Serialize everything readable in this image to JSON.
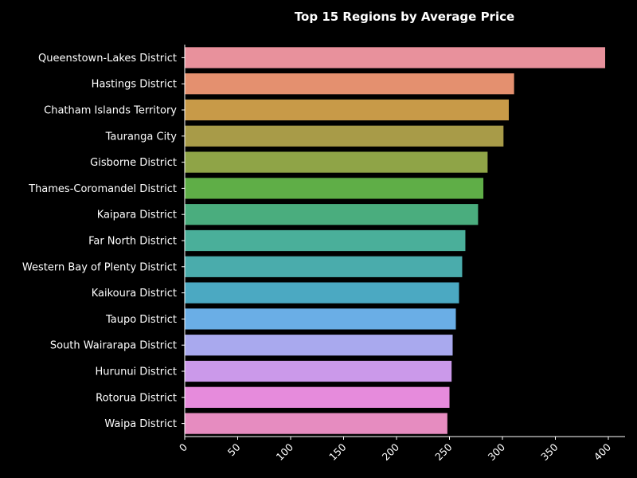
{
  "chart_data": {
    "type": "bar",
    "orientation": "horizontal",
    "title": "Top 15 Regions by Average Price",
    "xlabel": "",
    "ylabel": "",
    "xlim": [
      0,
      415
    ],
    "xticks": [
      "0",
      "50",
      "100",
      "150",
      "200",
      "250",
      "300",
      "350",
      "400"
    ],
    "xtick_values": [
      0,
      50,
      100,
      150,
      200,
      250,
      300,
      350,
      400
    ],
    "grid": false,
    "categories": [
      "Queenstown-Lakes District",
      "Hastings District",
      "Chatham Islands Territory",
      "Tauranga City",
      "Gisborne District",
      "Thames-Coromandel District",
      "Kaipara District",
      "Far North District",
      "Western Bay of Plenty District",
      "Kaikoura District",
      "Taupo District",
      "South Wairarapa District",
      "Hurunui District",
      "Rotorua District",
      "Waipa District"
    ],
    "values": [
      397,
      311,
      306,
      301,
      286,
      282,
      277,
      265,
      262,
      259,
      256,
      253,
      252,
      250,
      248
    ],
    "colors": [
      "#e8919c",
      "#e4906f",
      "#c89a48",
      "#a89b48",
      "#8fa447",
      "#5fae47",
      "#4aad7e",
      "#4aaf9a",
      "#4aacac",
      "#4ba9c2",
      "#6aaee6",
      "#a9a9ee",
      "#cb99ea",
      "#e68bdc",
      "#e68cc0"
    ]
  }
}
